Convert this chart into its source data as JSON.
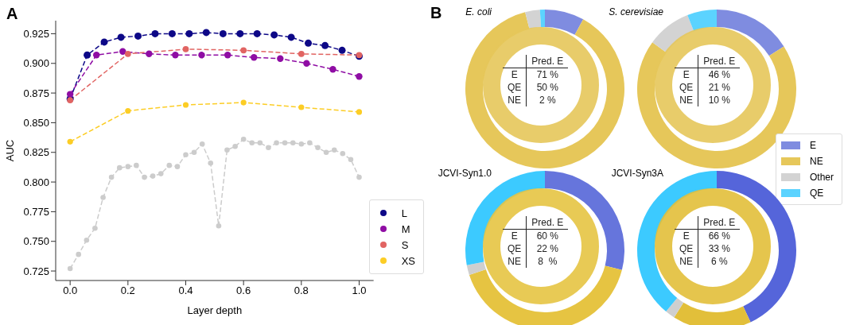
{
  "chart_data": [
    {
      "type": "line",
      "title": "A",
      "xlabel": "Layer depth",
      "ylabel": "AUC",
      "xlim": [
        -0.05,
        1.05
      ],
      "ylim": [
        0.717,
        0.936
      ],
      "xticks": [
        {
          "value": 0,
          "label": "0.0"
        },
        0.2,
        0.4,
        0.6,
        0.8,
        {
          "value": 1,
          "label": "1.0"
        }
      ],
      "yticks": [
        0.725,
        {
          "value": 0.75,
          "label": "0.750"
        },
        0.775,
        {
          "value": 0.8,
          "label": "0.800"
        },
        0.825,
        {
          "value": 0.85,
          "label": "0.850"
        },
        0.875,
        {
          "value": 0.9,
          "label": "0.900"
        },
        0.925
      ],
      "grid": false,
      "legend": "bottom right",
      "marker": "circle",
      "line_style": "dashed",
      "series": [
        {
          "name": "L",
          "color": "#0d0887",
          "x": [
            0,
            0.059,
            0.118,
            0.176,
            0.235,
            0.294,
            0.353,
            0.412,
            0.471,
            0.529,
            0.588,
            0.647,
            0.706,
            0.765,
            0.824,
            0.882,
            0.941,
            1
          ],
          "values": [
            0.87,
            0.907,
            0.918,
            0.922,
            0.923,
            0.925,
            0.925,
            0.925,
            0.926,
            0.925,
            0.925,
            0.925,
            0.924,
            0.922,
            0.917,
            0.915,
            0.911,
            0.906
          ]
        },
        {
          "name": "M",
          "color": "#8f0da4",
          "x": [
            0,
            0.091,
            0.182,
            0.273,
            0.364,
            0.455,
            0.545,
            0.636,
            0.727,
            0.818,
            0.909,
            1
          ],
          "values": [
            0.874,
            0.907,
            0.91,
            0.908,
            0.907,
            0.907,
            0.907,
            0.905,
            0.904,
            0.9,
            0.895,
            0.889
          ]
        },
        {
          "name": "S",
          "color": "#e16462",
          "x": [
            0,
            0.2,
            0.4,
            0.6,
            0.8,
            1
          ],
          "values": [
            0.869,
            0.908,
            0.912,
            0.911,
            0.908,
            0.907
          ]
        },
        {
          "name": "XS",
          "color": "#fccd25",
          "x": [
            0,
            0.2,
            0.4,
            0.6,
            0.8,
            1
          ],
          "values": [
            0.834,
            0.86,
            0.865,
            0.867,
            0.863,
            0.859
          ]
        },
        {
          "color": "#cccccc",
          "x": [
            0,
            0.029,
            0.057,
            0.086,
            0.114,
            0.143,
            0.171,
            0.2,
            0.229,
            0.257,
            0.286,
            0.314,
            0.343,
            0.371,
            0.4,
            0.429,
            0.457,
            0.486,
            0.514,
            0.543,
            0.571,
            0.6,
            0.629,
            0.657,
            0.686,
            0.714,
            0.743,
            0.771,
            0.8,
            0.829,
            0.857,
            0.886,
            0.914,
            0.943,
            0.971,
            1
          ],
          "values": [
            0.727,
            0.739,
            0.751,
            0.761,
            0.787,
            0.804,
            0.812,
            0.813,
            0.814,
            0.804,
            0.805,
            0.807,
            0.814,
            0.813,
            0.823,
            0.825,
            0.832,
            0.816,
            0.763,
            0.827,
            0.83,
            0.836,
            0.833,
            0.833,
            0.829,
            0.833,
            0.833,
            0.833,
            0.832,
            0.833,
            0.829,
            0.825,
            0.827,
            0.824,
            0.819,
            0.804
          ]
        }
      ]
    },
    {
      "type": "donut",
      "title": "E. coli",
      "categories": [
        null,
        null,
        null,
        null
      ],
      "values": [
        8,
        88,
        3,
        1
      ],
      "colors": [
        "#7f8ce0",
        "#e6c75a",
        "#d3d3d3",
        "#5bd3ff"
      ],
      "annotations": [
        "B",
        "Pred. E",
        "E",
        "71 %",
        "QE",
        "50 %",
        "NE",
        "2 %"
      ]
    },
    {
      "type": "donut",
      "title": "S. cerevisiae",
      "categories": [
        "E",
        "NE",
        "Other",
        "QE"
      ],
      "values": [
        16,
        69,
        9,
        6
      ],
      "colors": [
        "#7f8ce0",
        "#e6c75a",
        "#d3d3d3",
        "#5bd3ff"
      ],
      "legend": "right",
      "annotations": [
        "Pred. E",
        "E",
        "46 %",
        "QE",
        "21 %",
        "NE",
        "10 %"
      ]
    },
    {
      "type": "donut",
      "title": "JCVI-Syn1.0",
      "categories": [
        null,
        null,
        null,
        null
      ],
      "values": [
        29,
        41,
        2,
        28
      ],
      "colors": [
        "#6675dc",
        "#e6c442",
        "#cfcfcf",
        "#3ccaff"
      ],
      "annotations": [
        "Pred. E",
        "E",
        "60 %",
        "QE",
        "22 %",
        "NE",
        "8  %"
      ]
    },
    {
      "type": "donut",
      "title": "JCVI-Syn3A",
      "categories": [
        null,
        null,
        null,
        null
      ],
      "values": [
        43,
        16,
        2,
        39
      ],
      "colors": [
        "#5565da",
        "#e2bf3a",
        "#cfcfcf",
        "#3ccaff"
      ],
      "annotations": [
        "Pred. E",
        "E",
        "66 %",
        "QE",
        "33 %",
        "NE",
        "6 %"
      ]
    }
  ]
}
